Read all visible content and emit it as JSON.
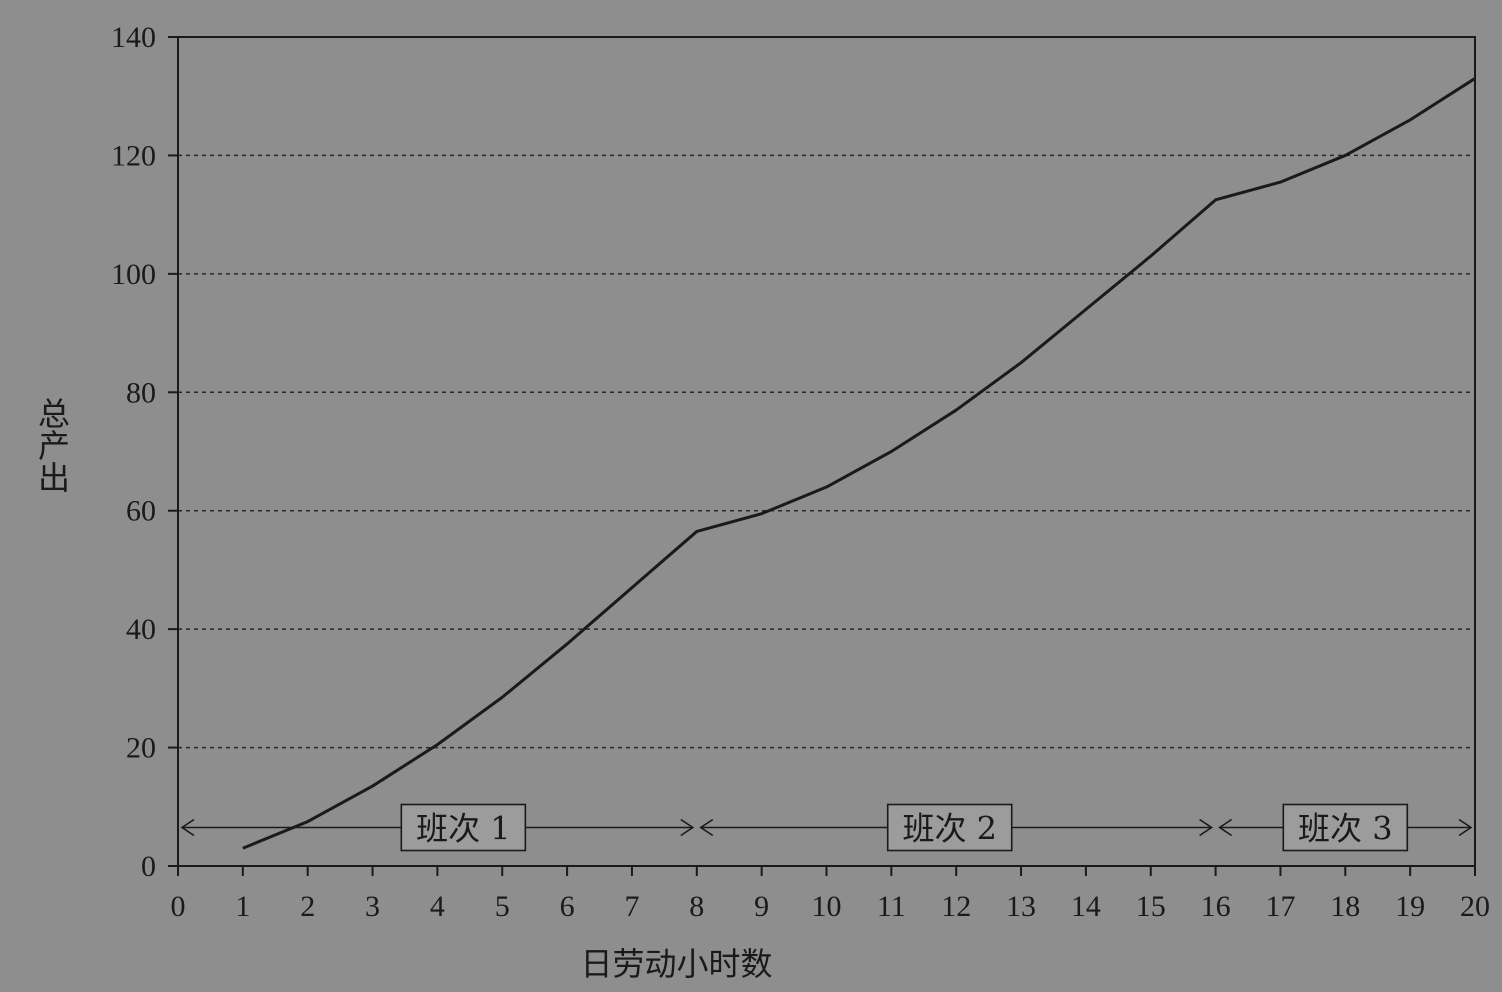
{
  "chart_data": {
    "type": "line",
    "title": "",
    "xlabel": "日劳动小时数",
    "ylabel": "总产出",
    "xlim": [
      0,
      20
    ],
    "ylim": [
      0,
      140
    ],
    "x_ticks": [
      0,
      1,
      2,
      3,
      4,
      5,
      6,
      7,
      8,
      9,
      10,
      11,
      12,
      13,
      14,
      15,
      16,
      17,
      18,
      19,
      20
    ],
    "y_ticks": [
      0,
      20,
      40,
      60,
      80,
      100,
      120,
      140
    ],
    "grid": "horizontal-dashed",
    "series": [
      {
        "x": [
          1,
          2,
          3,
          4,
          5,
          6,
          7,
          8,
          9,
          10,
          11,
          12,
          13,
          14,
          15,
          16,
          17,
          18,
          19,
          20
        ],
        "values": [
          3,
          7.5,
          13.5,
          20.5,
          28.5,
          37.5,
          47,
          56.5,
          59.5,
          64,
          70,
          77,
          85,
          94,
          103,
          112.5,
          115.5,
          120,
          126,
          133
        ]
      }
    ],
    "annotations": [
      {
        "label": "班次 1",
        "x_start": 0,
        "x_end": 8,
        "label_x": 4.4
      },
      {
        "label": "班次 2",
        "x_start": 8,
        "x_end": 16,
        "label_x": 11.9
      },
      {
        "label": "班次 3",
        "x_start": 16,
        "x_end": 20,
        "label_x": 18
      }
    ],
    "annotation_y": 6.5,
    "colors": {
      "background": "#8e8e8e",
      "line": "#1a1a1a",
      "grid": "#2a2a2a",
      "label_box": "#9c9c9c"
    }
  }
}
